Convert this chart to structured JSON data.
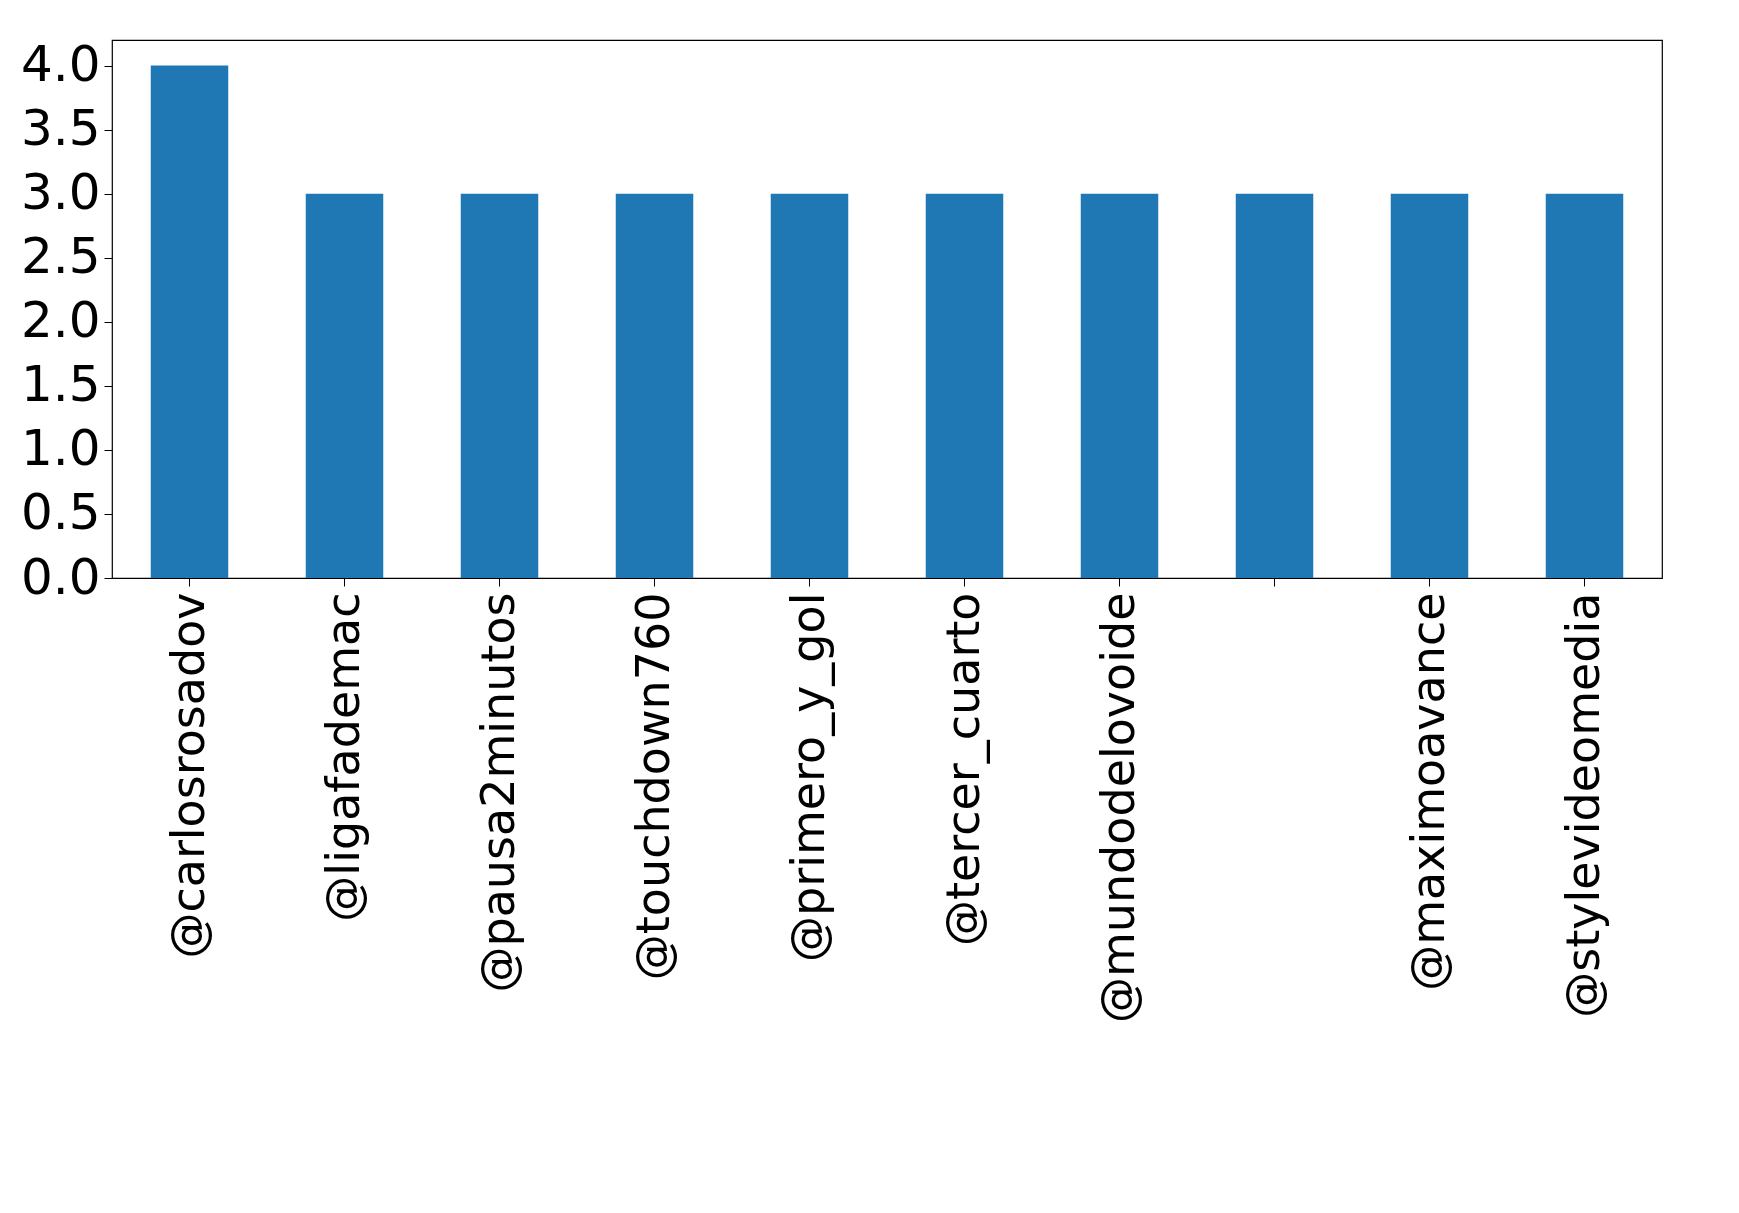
{
  "chart_data": {
    "type": "bar",
    "categories": [
      "@carlosrosadov",
      "@ligafademac",
      "@pausa2minutos",
      "@touchdown760",
      "@primero_y_gol",
      "@tercer_cuarto",
      "@mundodelovoide",
      null,
      "@maximoavance",
      "@stylevideomedia"
    ],
    "values": [
      4,
      3,
      3,
      3,
      3,
      3,
      3,
      3,
      3,
      3
    ],
    "color": "#1f77b4",
    "ylim": [
      0,
      4.2
    ],
    "yticks": [
      {
        "value": 0,
        "label": "0.0"
      },
      {
        "value": 0.5,
        "label": "0.5"
      },
      {
        "value": 1,
        "label": "1.0"
      },
      {
        "value": 1.5,
        "label": "1.5"
      },
      {
        "value": 2,
        "label": "2.0"
      },
      {
        "value": 2.5,
        "label": "2.5"
      },
      {
        "value": 3,
        "label": "3.0"
      },
      {
        "value": 3.5,
        "label": "3.5"
      },
      {
        "value": 4,
        "label": "4.0"
      }
    ],
    "grid": false
  }
}
